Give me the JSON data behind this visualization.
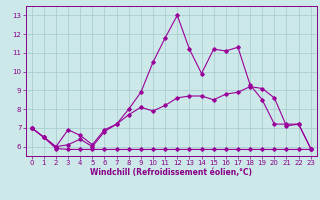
{
  "xlabel": "Windchill (Refroidissement éolien,°C)",
  "background_color": "#cce8e8",
  "grid_color": "#aacece",
  "line_color": "#990099",
  "xlim": [
    -0.5,
    23.5
  ],
  "ylim": [
    5.5,
    13.5
  ],
  "xticks": [
    0,
    1,
    2,
    3,
    4,
    5,
    6,
    7,
    8,
    9,
    10,
    11,
    12,
    13,
    14,
    15,
    16,
    17,
    18,
    19,
    20,
    21,
    22,
    23
  ],
  "yticks": [
    6,
    7,
    8,
    9,
    10,
    11,
    12,
    13
  ],
  "line1_x": [
    0,
    1,
    2,
    3,
    4,
    5,
    6,
    7,
    8,
    9,
    10,
    11,
    12,
    13,
    14,
    15,
    16,
    17,
    18,
    19,
    20,
    21,
    22,
    23
  ],
  "line1_y": [
    7.0,
    6.5,
    5.9,
    5.85,
    5.85,
    5.85,
    5.85,
    5.85,
    5.85,
    5.85,
    5.85,
    5.85,
    5.85,
    5.85,
    5.85,
    5.85,
    5.85,
    5.85,
    5.85,
    5.85,
    5.85,
    5.85,
    5.85,
    5.85
  ],
  "line2_x": [
    0,
    1,
    2,
    3,
    4,
    5,
    6,
    7,
    8,
    9,
    10,
    11,
    12,
    13,
    14,
    15,
    16,
    17,
    18,
    19,
    20,
    21,
    22,
    23
  ],
  "line2_y": [
    7.0,
    6.5,
    6.0,
    6.1,
    6.4,
    6.0,
    6.8,
    7.2,
    7.7,
    8.1,
    7.9,
    8.2,
    8.6,
    8.7,
    8.7,
    8.5,
    8.8,
    8.9,
    9.2,
    9.1,
    8.6,
    7.1,
    7.2,
    5.9
  ],
  "line3_x": [
    0,
    1,
    2,
    3,
    4,
    5,
    6,
    7,
    8,
    9,
    10,
    11,
    12,
    13,
    14,
    15,
    16,
    17,
    18,
    19,
    20,
    21,
    22,
    23
  ],
  "line3_y": [
    7.0,
    6.5,
    6.0,
    6.9,
    6.6,
    6.1,
    6.9,
    7.2,
    8.0,
    8.9,
    10.5,
    11.8,
    13.0,
    11.2,
    9.9,
    11.2,
    11.1,
    11.3,
    9.3,
    8.5,
    7.2,
    7.2,
    7.2,
    5.9
  ],
  "marker": "D",
  "marker_size": 1.8,
  "linewidth": 0.8,
  "tick_fontsize": 5.0,
  "xlabel_fontsize": 5.5,
  "tick_color": "#880088",
  "spine_color": "#880088"
}
